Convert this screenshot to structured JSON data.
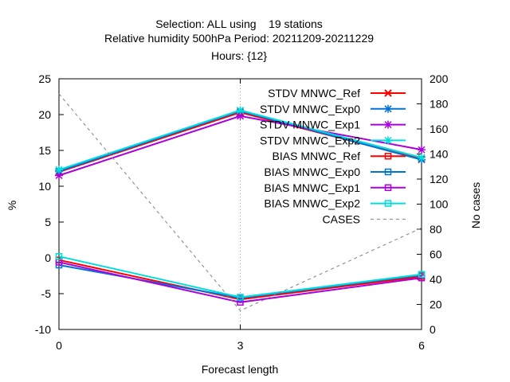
{
  "chart_data": {
    "type": "line",
    "title_lines": [
      "Selection: ALL using    19 stations",
      "Relative humidity 500hPa   Period: 20211209-20211229",
      "Hours: {12}"
    ],
    "xlabel": "Forecast length",
    "ylabel": "%",
    "y2label": "No cases",
    "x": [
      0,
      3,
      6
    ],
    "xlim": [
      0,
      6
    ],
    "xticks": [
      "0",
      "3",
      "6"
    ],
    "ylim": [
      -10,
      25
    ],
    "yticks": [
      "-10",
      "-5",
      "0",
      "5",
      "10",
      "15",
      "20",
      "25"
    ],
    "y2lim": [
      0,
      200
    ],
    "y2ticks": [
      "0",
      "20",
      "40",
      "60",
      "80",
      "100",
      "120",
      "140",
      "160",
      "180",
      "200"
    ],
    "grid": "x=3 dotted only",
    "legend_position": "top-right",
    "series": [
      {
        "name": "STDV MNWC_Ref",
        "axis": "y1",
        "values": [
          12.0,
          20.3,
          13.8
        ],
        "color": "#ff0000",
        "marker": "x",
        "dash": "solid"
      },
      {
        "name": "STDV MNWC_Exp0",
        "axis": "y1",
        "values": [
          12.1,
          20.5,
          13.7
        ],
        "color": "#0072d8",
        "marker": "star",
        "dash": "solid"
      },
      {
        "name": "STDV MNWC_Exp1",
        "axis": "y1",
        "values": [
          11.5,
          19.8,
          15.1
        ],
        "color": "#aa00dd",
        "marker": "star",
        "dash": "solid"
      },
      {
        "name": "STDV MNWC_Exp2",
        "axis": "y1",
        "values": [
          12.3,
          20.6,
          14.0
        ],
        "color": "#00dddd",
        "marker": "star",
        "dash": "solid"
      },
      {
        "name": "BIAS MNWC_Ref",
        "axis": "y1",
        "values": [
          -0.3,
          -5.8,
          -2.6
        ],
        "color": "#ff0000",
        "marker": "square",
        "dash": "solid"
      },
      {
        "name": "BIAS MNWC_Exp0",
        "axis": "y1",
        "values": [
          -1.0,
          -5.6,
          -2.4
        ],
        "color": "#0072d8",
        "marker": "square",
        "dash": "solid"
      },
      {
        "name": "BIAS MNWC_Exp1",
        "axis": "y1",
        "values": [
          -0.6,
          -6.2,
          -2.8
        ],
        "color": "#aa00dd",
        "marker": "square",
        "dash": "solid"
      },
      {
        "name": "BIAS MNWC_Exp2",
        "axis": "y1",
        "values": [
          0.2,
          -5.5,
          -2.3
        ],
        "color": "#00dddd",
        "marker": "square",
        "dash": "solid"
      },
      {
        "name": "CASES",
        "axis": "y2",
        "values": [
          188,
          15,
          81
        ],
        "color": "#808080",
        "marker": "none",
        "dash": "dashed"
      }
    ]
  }
}
